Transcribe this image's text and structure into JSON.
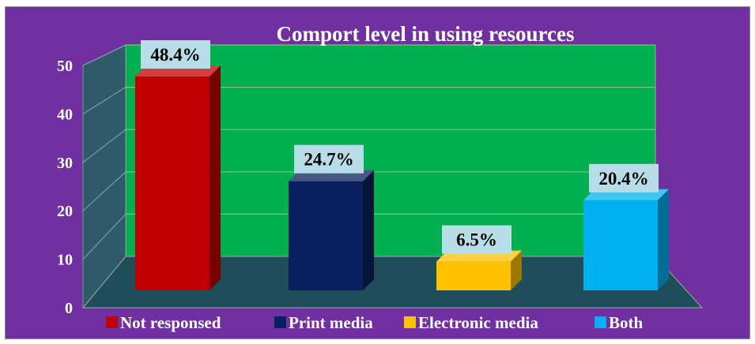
{
  "chart_data": {
    "type": "bar",
    "title": "Comport level in using resources",
    "categories": [
      "Not responsed",
      "Print media",
      "Electronic media",
      "Both"
    ],
    "values": [
      48.4,
      24.7,
      6.5,
      20.4
    ],
    "data_labels": [
      "48.4%",
      "24.7%",
      "6.5%",
      "20.4%"
    ],
    "colors": [
      "#c00000",
      "#0a1f5e",
      "#ffc000",
      "#00b0f0"
    ],
    "xlabel": "",
    "ylabel": "",
    "ylim": [
      0,
      50
    ],
    "yticks": [
      "0",
      "10",
      "20",
      "30",
      "40",
      "50"
    ],
    "grid": true,
    "legend_position": "bottom",
    "style": "3d-column",
    "background_color": "#7030a0",
    "plot_wall_color": "#00b050",
    "floor_color": "#1f4e5a",
    "label_box_color": "#b7dde8"
  }
}
